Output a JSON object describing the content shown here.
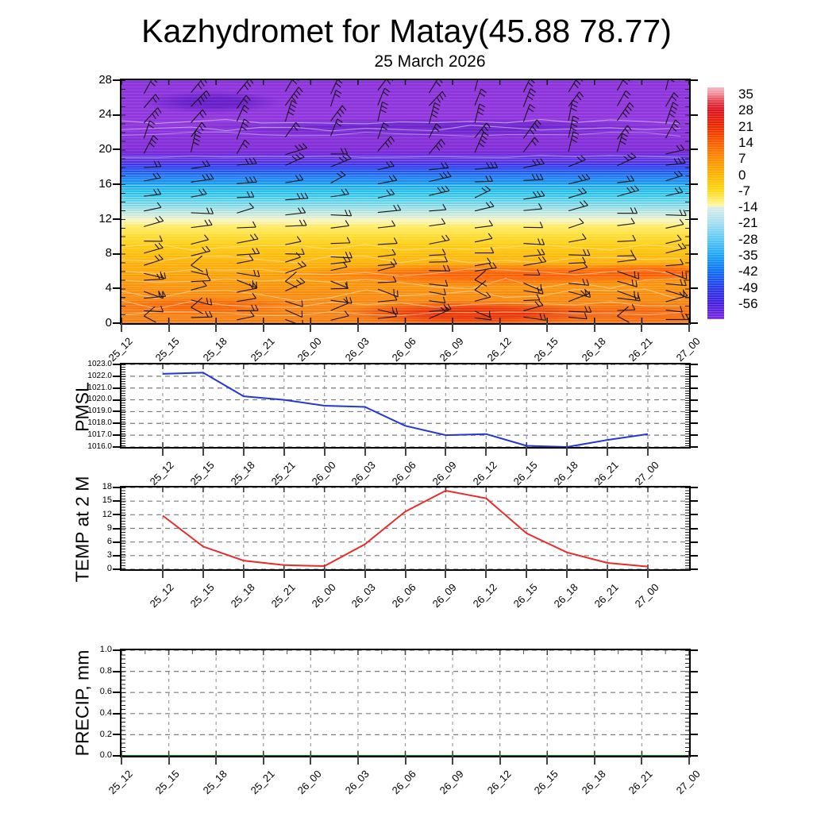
{
  "title": "Kazhydromet for Matay(45.88 78.77)",
  "subtitle": "25 March 2026",
  "time_labels": [
    "25_12",
    "25_15",
    "25_18",
    "25_21",
    "26_00",
    "26_03",
    "26_06",
    "26_09",
    "26_12",
    "26_15",
    "26_18",
    "26_21",
    "27_00"
  ],
  "chart_data": [
    {
      "type": "heatmap",
      "name": "temperature-height cross-section with wind barbs",
      "x": [
        "25_12",
        "25_15",
        "25_18",
        "25_21",
        "26_00",
        "26_03",
        "26_06",
        "26_09",
        "26_12",
        "26_15",
        "26_18",
        "26_21",
        "27_00"
      ],
      "y_ticks": [
        "0",
        "4",
        "8",
        "12",
        "16",
        "20",
        "24",
        "28"
      ],
      "y_range": [
        0,
        28
      ],
      "grid": false,
      "colorbar_ticks": [
        "35",
        "28",
        "21",
        "14",
        "7",
        "0",
        "-7",
        "-14",
        "-21",
        "-28",
        "-35",
        "-42",
        "-49",
        "-56"
      ],
      "colorbar_colors_top_to_bottom": [
        "#f4b8bd",
        "#dc1420",
        "#ea2800",
        "#fd5b00",
        "#ff8c00",
        "#ffb300",
        "#ffd813",
        "#fdf7a2",
        "#a5dff0",
        "#5ec9f4",
        "#1fa6f6",
        "#0d71f5",
        "#2a3deb",
        "#4420dd",
        "#7c2ae0"
      ],
      "temperature_bands": [
        {
          "height_km": [
            18.5,
            28
          ],
          "appearance": "purple",
          "approx_temp_c": "-56 and below"
        },
        {
          "height_km": [
            16,
            18.5
          ],
          "appearance": "dark blue to blue",
          "approx_temp_c": "-42 to -56"
        },
        {
          "height_km": [
            13,
            16
          ],
          "appearance": "cyan to pale blue",
          "approx_temp_c": "-21 to -42"
        },
        {
          "height_km": [
            12,
            13
          ],
          "appearance": "pale yellow-white",
          "approx_temp_c": "about -14"
        },
        {
          "height_km": [
            8,
            12
          ],
          "appearance": "yellow to golden",
          "approx_temp_c": "-7 to 0"
        },
        {
          "height_km": [
            4,
            8
          ],
          "appearance": "orange with red-orange band near 5-6 km (26_03 to 26_15)",
          "approx_temp_c": "0 to 7"
        },
        {
          "height_km": [
            0,
            4
          ],
          "appearance": "deep orange, strongest red near surface around 26_06-26_12",
          "approx_temp_c": "7 to 21"
        }
      ],
      "wind_profile": [
        {
          "height_km": [
            19,
            28
          ],
          "barbs": "steep up-right shafts, 2-4 ticks (strong upper winds)"
        },
        {
          "height_km": [
            13,
            19
          ],
          "barbs": "shallow rightward shafts, 2-3 ticks"
        },
        {
          "height_km": [
            6,
            13
          ],
          "barbs": "shallow rightward shafts, 1-2 ticks"
        },
        {
          "height_km": [
            0,
            6
          ],
          "barbs": "light/variable, 1-2 ticks, occasional V shapes"
        }
      ]
    },
    {
      "type": "line",
      "name": "PMSL",
      "ylabel": "PMSL",
      "x": [
        "25_12",
        "25_15",
        "25_18",
        "25_21",
        "26_00",
        "26_03",
        "26_06",
        "26_09",
        "26_12",
        "26_15",
        "26_18",
        "26_21",
        "27_00"
      ],
      "values": [
        1022.2,
        1022.3,
        1020.3,
        1020.0,
        1019.5,
        1019.4,
        1017.8,
        1017.0,
        1017.1,
        1016.1,
        1016.0,
        1016.6,
        1017.1
      ],
      "y_tick_labels": [
        "1016.0",
        "1017.0",
        "1018.0",
        "1019.0",
        "1020.0",
        "1021.0",
        "1022.0",
        "1023.0"
      ],
      "ylim": [
        1016.0,
        1023.0
      ],
      "grid": "dashed horizontal and vertical",
      "line_color": "#2536d8"
    },
    {
      "type": "line",
      "name": "TEMP at 2 M",
      "ylabel": "TEMP at 2 M",
      "x": [
        "25_12",
        "25_15",
        "25_18",
        "25_21",
        "26_00",
        "26_03",
        "26_06",
        "26_09",
        "26_12",
        "26_15",
        "26_18",
        "26_21",
        "27_00"
      ],
      "values": [
        11.8,
        5.0,
        1.9,
        0.9,
        0.7,
        5.5,
        12.7,
        17.3,
        15.6,
        7.9,
        3.7,
        1.4,
        0.6
      ],
      "y_tick_labels": [
        "0",
        "3",
        "6",
        "9",
        "12",
        "15",
        "18"
      ],
      "ylim": [
        0,
        18
      ],
      "grid": "dashed horizontal and vertical",
      "line_color": "#e82c2c"
    },
    {
      "type": "line",
      "name": "PRECIP, mm",
      "ylabel": "PRECIP, mm",
      "x": [
        "25_12",
        "25_15",
        "25_18",
        "25_21",
        "26_00",
        "26_03",
        "26_06",
        "26_09",
        "26_12",
        "26_15",
        "26_18",
        "26_21",
        "27_00"
      ],
      "values": [
        0.0,
        0.0,
        0.0,
        0.0,
        0.0,
        0.0,
        0.0,
        0.0,
        0.0,
        0.0,
        0.0,
        0.0,
        0.0
      ],
      "y_tick_labels": [
        "0.0",
        "0.2",
        "0.4",
        "0.6",
        "0.8",
        "1.0"
      ],
      "ylim": [
        0.0,
        1.0
      ],
      "grid": "dashed horizontal and vertical",
      "line_color": "#0a7a0a"
    }
  ]
}
